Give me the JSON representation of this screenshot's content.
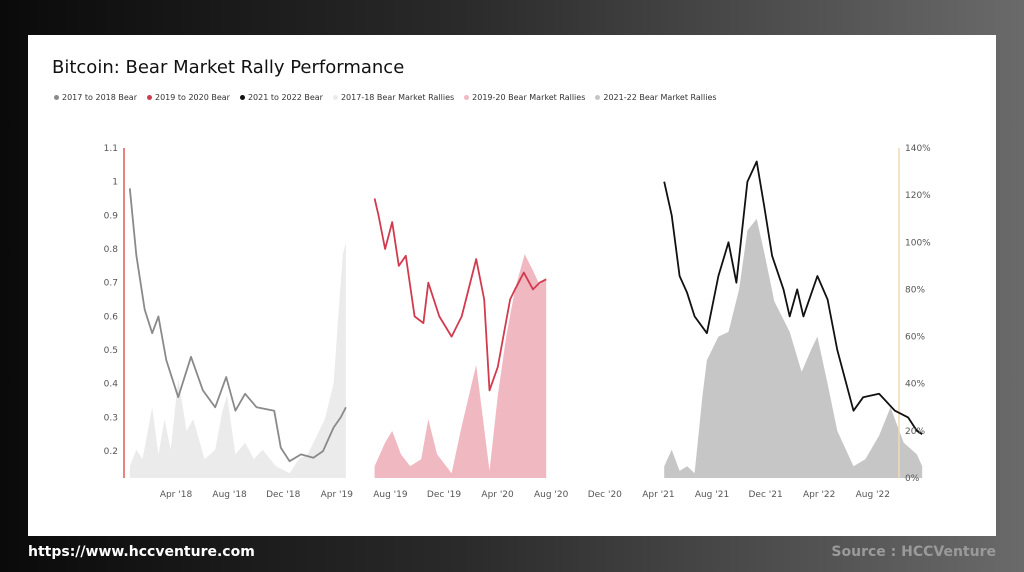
{
  "footer": {
    "website": "https://www.hccventure.com",
    "source": "Source : HCCVenture"
  },
  "colors": {
    "bear_2017_18": "#8a8a8a",
    "bear_2019_20": "#d23a4e",
    "bear_2021_22": "#111111",
    "rally_2017_18": "#ebebeb",
    "rally_2019_20": "#f0b8c0",
    "rally_2021_22": "#c6c6c6",
    "left_axis_line": "#e05a5a",
    "right_axis_line": "#f3d9b3"
  },
  "chart_data": {
    "type": "line",
    "title": "Bitcoin: Bear Market Rally Performance",
    "legend_position": "top-left",
    "grid": false,
    "x_ticks": [
      "Apr '18",
      "Aug '18",
      "Dec '18",
      "Apr '19",
      "Aug '19",
      "Dec '19",
      "Apr '20",
      "Aug '20",
      "Dec '20",
      "Apr '21",
      "Aug '21",
      "Dec '21",
      "Apr '22",
      "Aug '22"
    ],
    "y_left": {
      "ticks": [
        "0.2",
        "0.3",
        "0.4",
        "0.5",
        "0.6",
        "0.7",
        "0.8",
        "0.9",
        "1",
        "1.1"
      ],
      "range": [
        0.12,
        1.1
      ]
    },
    "y_right": {
      "ticks": [
        "0%",
        "20%",
        "40%",
        "60%",
        "80%",
        "100%",
        "120%",
        "140%"
      ],
      "range": [
        0,
        140
      ]
    },
    "series": [
      {
        "name": "2017 to 2018 Bear",
        "kind": "line",
        "axis": "left",
        "x": [
          "2017-12-17",
          "2018-01-01",
          "2018-01-20",
          "2018-02-06",
          "2018-02-20",
          "2018-03-10",
          "2018-04-06",
          "2018-05-05",
          "2018-06-01",
          "2018-06-29",
          "2018-07-24",
          "2018-08-14",
          "2018-09-05",
          "2018-10-01",
          "2018-11-10",
          "2018-11-25",
          "2018-12-15",
          "2019-01-10",
          "2019-02-07",
          "2019-03-01",
          "2019-03-25",
          "2019-04-10",
          "2019-04-22"
        ],
        "values": [
          0.98,
          0.78,
          0.62,
          0.55,
          0.6,
          0.47,
          0.36,
          0.48,
          0.38,
          0.33,
          0.42,
          0.32,
          0.37,
          0.33,
          0.32,
          0.21,
          0.17,
          0.19,
          0.18,
          0.2,
          0.27,
          0.3,
          0.33
        ]
      },
      {
        "name": "2019 to 2020 Bear",
        "kind": "line",
        "axis": "left",
        "x": [
          "2019-06-26",
          "2019-07-05",
          "2019-07-20",
          "2019-08-05",
          "2019-08-20",
          "2019-09-05",
          "2019-09-25",
          "2019-10-15",
          "2019-10-26",
          "2019-11-20",
          "2019-12-18",
          "2020-01-10",
          "2020-02-12",
          "2020-03-01",
          "2020-03-13",
          "2020-04-01",
          "2020-04-29",
          "2020-05-10",
          "2020-05-30",
          "2020-06-20",
          "2020-07-05",
          "2020-07-20"
        ],
        "values": [
          0.95,
          0.9,
          0.8,
          0.88,
          0.75,
          0.78,
          0.6,
          0.58,
          0.7,
          0.6,
          0.54,
          0.6,
          0.77,
          0.65,
          0.38,
          0.45,
          0.65,
          0.68,
          0.73,
          0.68,
          0.7,
          0.71
        ]
      },
      {
        "name": "2021 to 2022 Bear",
        "kind": "line",
        "axis": "left",
        "x": [
          "2021-04-14",
          "2021-05-01",
          "2021-05-19",
          "2021-06-05",
          "2021-06-22",
          "2021-07-20",
          "2021-08-15",
          "2021-09-07",
          "2021-09-25",
          "2021-10-20",
          "2021-11-10",
          "2021-11-28",
          "2021-12-15",
          "2022-01-10",
          "2022-01-24",
          "2022-02-10",
          "2022-02-24",
          "2022-03-28",
          "2022-04-20",
          "2022-05-12",
          "2022-06-18",
          "2022-07-10",
          "2022-08-15",
          "2022-09-20",
          "2022-10-20",
          "2022-11-09",
          "2022-11-21"
        ],
        "values": [
          1.0,
          0.9,
          0.72,
          0.67,
          0.6,
          0.55,
          0.72,
          0.82,
          0.7,
          1.0,
          1.06,
          0.92,
          0.78,
          0.68,
          0.6,
          0.68,
          0.6,
          0.72,
          0.65,
          0.5,
          0.32,
          0.36,
          0.37,
          0.32,
          0.3,
          0.26,
          0.25
        ]
      },
      {
        "name": "2017-18 Bear Market Rallies",
        "kind": "area",
        "axis": "right",
        "x": [
          "2017-12-17",
          "2018-01-01",
          "2018-01-15",
          "2018-02-06",
          "2018-02-20",
          "2018-03-06",
          "2018-03-20",
          "2018-04-06",
          "2018-04-25",
          "2018-05-10",
          "2018-06-05",
          "2018-06-29",
          "2018-07-15",
          "2018-07-26",
          "2018-08-14",
          "2018-09-05",
          "2018-09-25",
          "2018-10-15",
          "2018-11-14",
          "2018-12-15",
          "2019-01-05",
          "2019-01-25",
          "2019-02-15",
          "2019-03-05",
          "2019-03-25",
          "2019-04-05",
          "2019-04-15",
          "2019-04-22"
        ],
        "values": [
          5,
          12,
          8,
          30,
          10,
          25,
          12,
          42,
          20,
          25,
          8,
          12,
          28,
          35,
          10,
          15,
          8,
          12,
          5,
          2,
          8,
          10,
          18,
          25,
          40,
          70,
          95,
          100
        ]
      },
      {
        "name": "2019-20 Bear Market Rallies",
        "kind": "area",
        "axis": "right",
        "x": [
          "2019-06-26",
          "2019-07-20",
          "2019-08-05",
          "2019-08-25",
          "2019-09-15",
          "2019-10-10",
          "2019-10-26",
          "2019-11-15",
          "2019-12-18",
          "2020-01-10",
          "2020-02-12",
          "2020-03-13",
          "2020-04-01",
          "2020-04-20",
          "2020-05-10",
          "2020-06-01",
          "2020-06-20",
          "2020-07-05",
          "2020-07-20"
        ],
        "values": [
          5,
          15,
          20,
          10,
          5,
          8,
          25,
          10,
          2,
          22,
          48,
          3,
          35,
          60,
          80,
          95,
          88,
          82,
          85
        ]
      },
      {
        "name": "2021-22 Bear Market Rallies",
        "kind": "area",
        "axis": "right",
        "x": [
          "2021-04-14",
          "2021-05-01",
          "2021-05-19",
          "2021-06-05",
          "2021-06-22",
          "2021-07-10",
          "2021-07-20",
          "2021-08-15",
          "2021-09-07",
          "2021-10-01",
          "2021-10-20",
          "2021-11-10",
          "2021-11-28",
          "2021-12-20",
          "2022-01-24",
          "2022-02-20",
          "2022-03-15",
          "2022-03-28",
          "2022-04-20",
          "2022-05-12",
          "2022-06-18",
          "2022-07-15",
          "2022-08-15",
          "2022-09-10",
          "2022-10-10",
          "2022-11-09",
          "2022-11-21"
        ],
        "values": [
          5,
          12,
          3,
          5,
          2,
          35,
          50,
          60,
          62,
          80,
          105,
          110,
          95,
          75,
          62,
          45,
          55,
          60,
          40,
          20,
          5,
          8,
          18,
          30,
          15,
          10,
          5
        ]
      }
    ]
  }
}
